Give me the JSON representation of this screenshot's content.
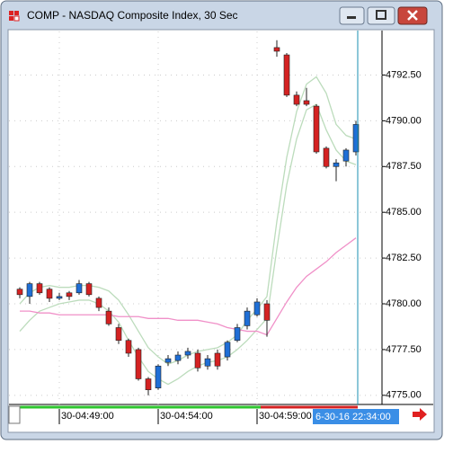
{
  "window": {
    "title": "COMP - NASDAQ Composite Index, 30 Sec"
  },
  "chart_data": {
    "type": "candlestick",
    "open": [
      4780.8,
      4780.4,
      4781.1,
      4780.8,
      4780.3,
      4780.6,
      4780.6,
      4781.1,
      4780.3,
      4779.6,
      4778.7,
      4778.0,
      4777.5,
      4775.9,
      4775.4,
      4776.8,
      4776.9,
      4777.2,
      4777.3,
      4776.6,
      4777.3,
      4777.1,
      4778.0,
      4778.8,
      4779.4,
      4780.0,
      4794.0,
      4793.6,
      4791.4,
      4791.1,
      4790.8,
      4788.5,
      4787.5,
      4787.8,
      4788.3
    ],
    "high": [
      4780.9,
      4781.2,
      4781.2,
      4780.9,
      4780.6,
      4780.7,
      4781.3,
      4781.2,
      4780.4,
      4779.8,
      4778.9,
      4778.1,
      4777.6,
      4776.0,
      4776.7,
      4777.2,
      4777.4,
      4777.6,
      4777.5,
      4777.2,
      4777.5,
      4778.0,
      4778.9,
      4779.8,
      4780.3,
      4780.2,
      4794.4,
      4793.7,
      4791.6,
      4791.8,
      4790.9,
      4788.6,
      4787.9,
      4788.5,
      4790.0
    ],
    "low": [
      4780.3,
      4780.0,
      4780.5,
      4780.1,
      4780.2,
      4780.2,
      4780.5,
      4780.4,
      4779.6,
      4778.8,
      4777.8,
      4777.1,
      4775.8,
      4775.0,
      4775.3,
      4776.6,
      4776.7,
      4777.0,
      4776.3,
      4776.4,
      4776.4,
      4776.9,
      4777.9,
      4778.6,
      4779.3,
      4778.2,
      4793.5,
      4791.3,
      4790.8,
      4790.8,
      4788.2,
      4787.4,
      4786.7,
      4787.5,
      4788.1
    ],
    "close": [
      4780.5,
      4781.1,
      4780.6,
      4780.3,
      4780.4,
      4780.4,
      4781.1,
      4780.5,
      4779.8,
      4778.9,
      4778.0,
      4777.3,
      4775.9,
      4775.3,
      4776.6,
      4777.0,
      4777.2,
      4777.4,
      4776.5,
      4777.0,
      4776.6,
      4777.9,
      4778.7,
      4779.6,
      4780.1,
      4779.1,
      4793.8,
      4791.4,
      4790.9,
      4790.9,
      4788.3,
      4787.5,
      4787.7,
      4788.4,
      4789.8
    ],
    "up_color": "#1f6fd6",
    "down_color": "#d42222",
    "overlays": [
      {
        "color": "#bcdcbc",
        "values": [
          4780.0,
          4780.6,
          4780.9,
          4781.0,
          4780.9,
          4780.9,
          4781.0,
          4781.0,
          4780.9,
          4780.7,
          4780.2,
          4779.4,
          4778.5,
          4777.6,
          4777.1,
          4776.7,
          4776.9,
          4777.2,
          4777.4,
          4777.5,
          4777.6,
          4777.9,
          4778.3,
          4779.1,
          4779.7,
          4780.4,
          4784.5,
          4788.0,
          4790.5,
          4792.0,
          4792.4,
          4791.5,
          4789.8,
          4789.2,
          4789.0
        ]
      },
      {
        "color": "#bcdcbc",
        "values": [
          4778.5,
          4779.1,
          4779.6,
          4779.8,
          4780.0,
          4780.1,
          4780.2,
          4780.2,
          4780.0,
          4779.6,
          4779.0,
          4778.0,
          4777.1,
          4776.3,
          4775.9,
          4775.6,
          4775.9,
          4776.3,
          4776.6,
          4776.8,
          4776.9,
          4777.1,
          4777.5,
          4778.0,
          4778.6,
          4779.2,
          4783.0,
          4786.5,
          4789.0,
          4790.6,
          4790.9,
          4789.5,
          4788.4,
          4787.8,
          4787.6
        ]
      },
      {
        "color": "#f090c8",
        "values": [
          4779.6,
          4779.6,
          4779.5,
          4779.5,
          4779.4,
          4779.4,
          4779.4,
          4779.4,
          4779.4,
          4779.4,
          4779.3,
          4779.3,
          4779.3,
          4779.2,
          4779.2,
          4779.2,
          4779.1,
          4779.1,
          4779.1,
          4779.0,
          4778.9,
          4778.7,
          4778.6,
          4778.5,
          4778.5,
          4778.3,
          4779.2,
          4780.1,
          4780.9,
          4781.5,
          4781.9,
          4782.3,
          4782.8,
          4783.2,
          4783.6
        ]
      }
    ],
    "ylim": [
      4774.5,
      4794.88
    ],
    "yticks": [
      {
        "value": 4775,
        "label": "4775.00"
      },
      {
        "value": 4777.5,
        "label": "4777.50"
      },
      {
        "value": 4780,
        "label": "4780.00"
      },
      {
        "value": 4782.5,
        "label": "4782.50"
      },
      {
        "value": 4785,
        "label": "4785.00"
      },
      {
        "value": 4787.5,
        "label": "4787.50"
      },
      {
        "value": 4790,
        "label": "4790.00"
      },
      {
        "value": 4792.5,
        "label": "4792.50"
      }
    ],
    "xticks": [
      {
        "value": 4,
        "label": "30-04:49:00"
      },
      {
        "value": 14,
        "label": "30-04:54:00"
      },
      {
        "value": 24,
        "label": "30-04:59:00"
      }
    ],
    "grid": true,
    "crosshair": {
      "value": 34,
      "label": "6-30-16 22:34:00"
    }
  }
}
